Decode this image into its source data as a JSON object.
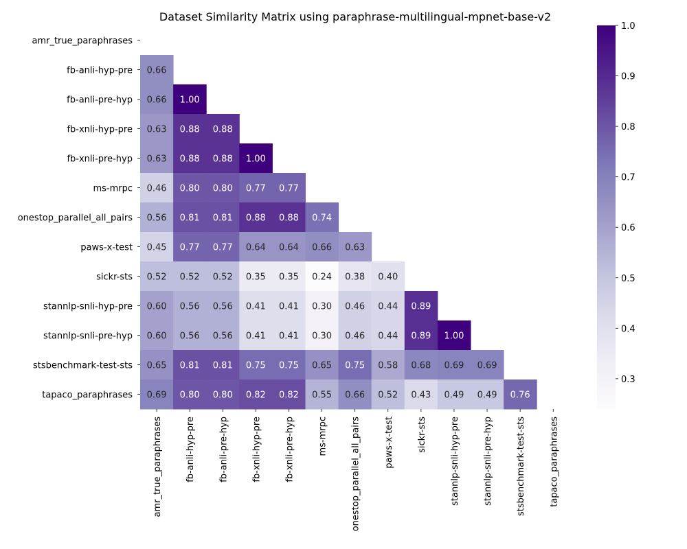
{
  "chart_data": {
    "type": "heatmap",
    "title": "Dataset Similarity Matrix using paraphrase-multilingual-mpnet-base-v2",
    "categories": [
      "amr_true_paraphrases",
      "fb-anli-hyp-pre",
      "fb-anli-pre-hyp",
      "fb-xnli-hyp-pre",
      "fb-xnli-pre-hyp",
      "ms-mrpc",
      "onestop_parallel_all_pairs",
      "paws-x-test",
      "sickr-sts",
      "stannlp-snli-hyp-pre",
      "stannlp-snli-pre-hyp",
      "stsbenchmark-test-sts",
      "tapaco_paraphrases"
    ],
    "mask": "upper-triangle-and-diagonal",
    "values": [
      [],
      [
        0.66
      ],
      [
        0.66,
        1.0
      ],
      [
        0.63,
        0.88,
        0.88
      ],
      [
        0.63,
        0.88,
        0.88,
        1.0
      ],
      [
        0.46,
        0.8,
        0.8,
        0.77,
        0.77
      ],
      [
        0.56,
        0.81,
        0.81,
        0.88,
        0.88,
        0.74
      ],
      [
        0.45,
        0.77,
        0.77,
        0.64,
        0.64,
        0.66,
        0.63
      ],
      [
        0.52,
        0.52,
        0.52,
        0.35,
        0.35,
        0.24,
        0.38,
        0.4
      ],
      [
        0.6,
        0.56,
        0.56,
        0.41,
        0.41,
        0.3,
        0.46,
        0.44,
        0.89
      ],
      [
        0.6,
        0.56,
        0.56,
        0.41,
        0.41,
        0.3,
        0.46,
        0.44,
        0.89,
        1.0
      ],
      [
        0.65,
        0.81,
        0.81,
        0.75,
        0.75,
        0.65,
        0.75,
        0.58,
        0.68,
        0.69,
        0.69
      ],
      [
        0.69,
        0.8,
        0.8,
        0.82,
        0.82,
        0.55,
        0.66,
        0.52,
        0.43,
        0.49,
        0.49,
        0.76
      ]
    ],
    "value_format": "2 decimals",
    "colormap": "Purples",
    "colorbar": {
      "range": [
        0.24,
        1.0
      ],
      "ticks": [
        "0.3",
        "0.4",
        "0.5",
        "0.6",
        "0.7",
        "0.8",
        "0.9",
        "1.0"
      ],
      "tick_values": [
        0.3,
        0.4,
        0.5,
        0.6,
        0.7,
        0.8,
        0.9,
        1.0
      ]
    }
  }
}
